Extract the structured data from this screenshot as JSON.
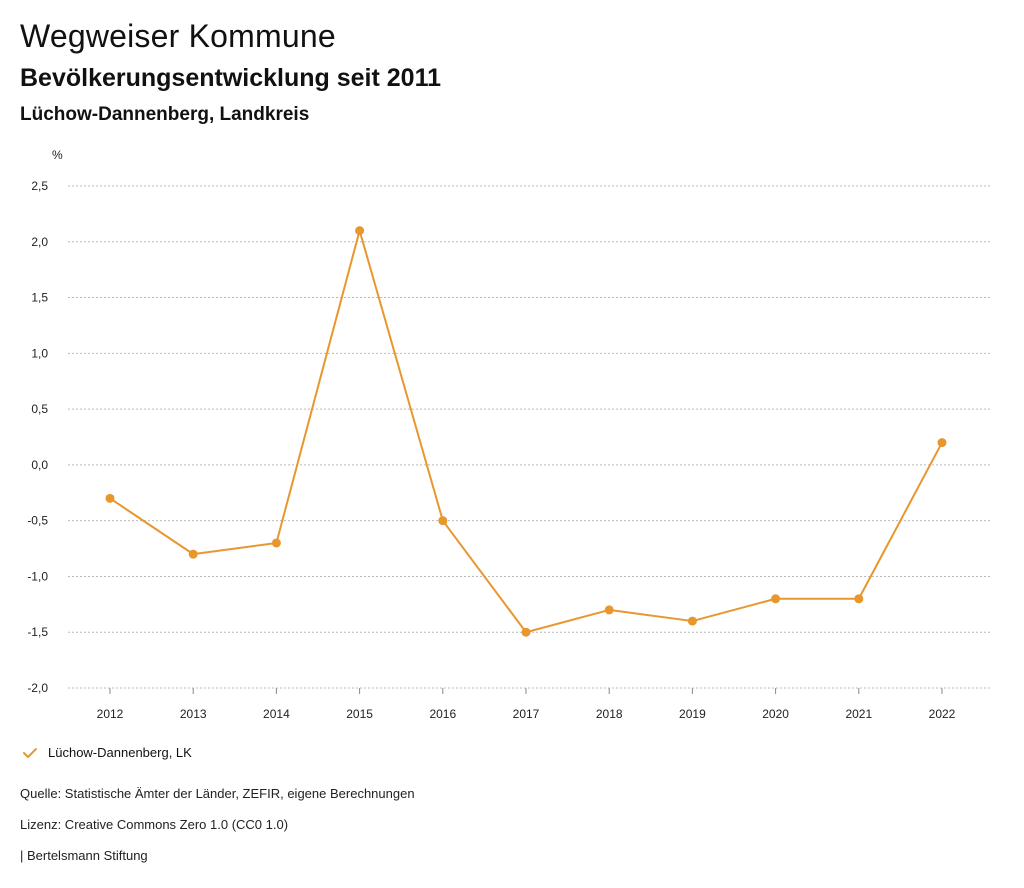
{
  "header": {
    "title": "Wegweiser Kommune",
    "subtitle": "Bevölkerungsentwicklung seit 2011",
    "region": "Lüchow-Dannenberg, Landkreis"
  },
  "chart_data": {
    "type": "line",
    "title": "Bevölkerungsentwicklung seit 2011",
    "xlabel": "",
    "ylabel": "%",
    "categories": [
      "2012",
      "2013",
      "2014",
      "2015",
      "2016",
      "2017",
      "2018",
      "2019",
      "2020",
      "2021",
      "2022"
    ],
    "series": [
      {
        "name": "Lüchow-Dannenberg, LK",
        "values": [
          -0.3,
          -0.8,
          -0.7,
          2.1,
          -0.5,
          -1.5,
          -1.3,
          -1.4,
          -1.2,
          -1.2,
          0.2
        ]
      }
    ],
    "ylim": [
      -2.0,
      2.5
    ],
    "yticks": [
      2.5,
      2.0,
      1.5,
      1.0,
      0.5,
      0.0,
      -0.5,
      -1.0,
      -1.5,
      -2.0
    ],
    "ytick_labels": [
      "2,5",
      "2,0",
      "1,5",
      "1,0",
      "0,5",
      "0,0",
      "-0,5",
      "-1,0",
      "-1,5",
      "-2,0"
    ],
    "grid": true,
    "legend_position": "bottom-left",
    "series_color": "#E8972E"
  },
  "legend": {
    "label": "Lüchow-Dannenberg, LK",
    "icon": "check-icon"
  },
  "footer": {
    "source": "Quelle: Statistische Ämter der Länder, ZEFIR, eigene Berechnungen",
    "license": "Lizenz: Creative Commons Zero 1.0 (CC0 1.0)",
    "credit": "| Bertelsmann Stiftung"
  }
}
